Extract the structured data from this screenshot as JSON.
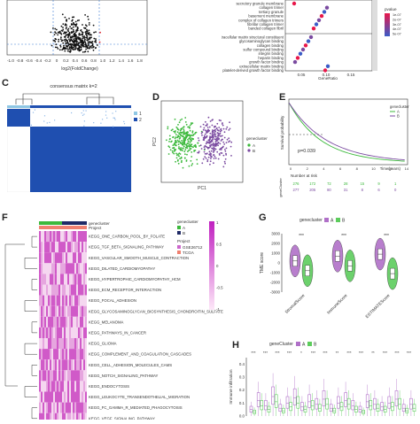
{
  "panels": {
    "c": "C",
    "d": "D",
    "e": "E",
    "f": "F",
    "g": "G",
    "h": "H"
  },
  "volcano": {
    "xlabel": "log2(FoldChange)",
    "ticks": [
      "-1.0",
      "-0.8",
      "-0.6",
      "-0.4",
      "-0.2",
      "0",
      "0.2",
      "0.4",
      "0.6",
      "0.8",
      "1.0",
      "1.2",
      "1.4",
      "1.6",
      "1.8"
    ]
  },
  "go": {
    "terms": [
      "secretory granule membrane",
      "collagen trimer",
      "tertiary granule",
      "basement membrane",
      "complex of collagen trimers",
      "fibrillar collagen trimer",
      "banded collagen fibril",
      "extracellular matrix structural constituent",
      "glycosaminoglycan binding",
      "collagen binding",
      "sulfur compound binding",
      "integrin binding",
      "heparin binding",
      "growth factor binding",
      "extracellular matrix binding",
      "platelet-derived growth factor binding"
    ],
    "xlabel": "GeneRatio",
    "xticks": [
      "0.05",
      "0.10",
      "0.15"
    ],
    "legend_title": "pvalue",
    "legend_vals": [
      "1e-07",
      "2e-07",
      "3e-07",
      "4e-07",
      "5e-07"
    ],
    "colors": [
      "#e8174a",
      "#7a4aa0",
      "#3b5cc7"
    ]
  },
  "consensus": {
    "title": "consensus matrix k=2",
    "legend": [
      "1",
      "2"
    ],
    "colors": [
      "#8fc7e4",
      "#1f4fb0"
    ]
  },
  "pca": {
    "xlabel": "PC1",
    "ylabel": "PC2",
    "legend_title": "genecluster",
    "legend": [
      "A",
      "B"
    ],
    "colors": [
      "#3cb93c",
      "#7a4aa0"
    ]
  },
  "km": {
    "legend_title": "genecluster",
    "legend": [
      "A",
      "B"
    ],
    "ylabel": "Survival probability",
    "xlabel": "Time(years)",
    "pvalue": "p=0.039",
    "risk_title": "Number at risk",
    "risk_A": [
      "276",
      "172",
      "72",
      "28",
      "15",
      "9",
      "1"
    ],
    "risk_B": [
      "277",
      "205",
      "80",
      "31",
      "8",
      "6",
      "0"
    ],
    "risk_ylabel": "geneCluster",
    "xticks": [
      "0",
      "2",
      "4",
      "6",
      "8",
      "10",
      "12",
      "14"
    ],
    "colors": [
      "#3cb93c",
      "#7a4aa0"
    ]
  },
  "heat": {
    "row_header_1": "genecluster",
    "row_header_2": "Project",
    "legend1_title": "genecluster",
    "legend1": [
      "A",
      "B"
    ],
    "legend2_title": "Project",
    "legend2": [
      "GSE26712",
      "TCGA"
    ],
    "scale": [
      "1",
      "0.5",
      "0",
      "-0.5",
      "-1"
    ],
    "pathways": [
      "KEGG_ONE_CARBON_POOL_BY_FOLATE",
      "KEGG_TGF_BETA_SIGNALING_PATHWAY",
      "KEGG_VASCULAR_SMOOTH_MUSCLE_CONTRACTION",
      "KEGG_DILATED_CARDIOMYOPATHY",
      "KEGG_HYPERTROPHIC_CARDIOMYOPATHY_HCM",
      "KEGG_ECM_RECEPTOR_INTERACTION",
      "KEGG_FOCAL_ADHESION",
      "KEGG_GLYCOSAMINOGLYCAN_BIOSYNTHESIS_CHONDROITIN_SULFATE",
      "KEGG_MELANOMA",
      "KEGG_PATHWAYS_IN_CANCER",
      "KEGG_GLIOMA",
      "KEGG_COMPLEMENT_AND_COAGULATION_CASCADES",
      "KEGG_CELL_ADHESION_MOLECULES_CAMS",
      "KEGG_NOTCH_SIGNALING_PATHWAY",
      "KEGG_ENDOCYTOSIS",
      "KEGG_LEUKOCYTE_TRANSENDOTHELIAL_MIGRATION",
      "KEGG_FC_GAMMA_R_MEDIATED_PHAGOCYTOSIS",
      "KEGG_VEGF_SIGNALING_PATHWAY"
    ],
    "colors": {
      "a": "#3cb93c",
      "b": "#1f2a66",
      "p1": "#cc66cc",
      "p2": "#f08070"
    }
  },
  "chart_data": [
    {
      "type": "violin",
      "legend_title": "genecluster",
      "legend": [
        "A",
        "B"
      ],
      "ylabel": "TME score",
      "ylim": [
        -3000,
        3000
      ],
      "yticks": [
        "3000",
        "2000",
        "1000",
        "0",
        "-1000",
        "-2000",
        "-3000"
      ],
      "categories": [
        "StromalScore",
        "ImmuneScore",
        "ESTIMATEScore"
      ],
      "series": [
        {
          "name": "A",
          "values": [
            200,
            700,
            900
          ]
        },
        {
          "name": "B",
          "values": [
            -800,
            -300,
            -1100
          ]
        }
      ],
      "significance": [
        "***",
        "***",
        "***"
      ],
      "colors": [
        "#b070c8",
        "#5ccc5c"
      ]
    },
    {
      "type": "box",
      "legend_title": "geneCluster",
      "legend": [
        "A",
        "B"
      ],
      "ylabel": "Immune infiltration",
      "yticks": [
        "0.0",
        "0.1",
        "0.2",
        "0.3",
        "0.4"
      ],
      "ylim": [
        0,
        0.45
      ],
      "significance": [
        "***",
        "***",
        "***",
        "***",
        "*",
        "***",
        "***",
        "**",
        "***",
        "***",
        "**",
        "***",
        "***",
        "***"
      ],
      "series": [
        {
          "name": "A",
          "values": [
            0.05,
            0.12,
            0.08,
            0.15,
            0.06,
            0.1,
            0.14,
            0.07,
            0.11,
            0.09,
            0.13,
            0.06,
            0.1,
            0.12,
            0.08,
            0.05,
            0.11,
            0.09,
            0.07,
            0.1,
            0.13,
            0.06,
            0.09
          ]
        },
        {
          "name": "B",
          "values": [
            0.03,
            0.08,
            0.05,
            0.11,
            0.04,
            0.07,
            0.1,
            0.05,
            0.08,
            0.06,
            0.09,
            0.04,
            0.07,
            0.09,
            0.05,
            0.03,
            0.08,
            0.06,
            0.05,
            0.07,
            0.09,
            0.04,
            0.06
          ]
        }
      ],
      "colors": [
        "#b070c8",
        "#5ccc5c"
      ]
    }
  ]
}
